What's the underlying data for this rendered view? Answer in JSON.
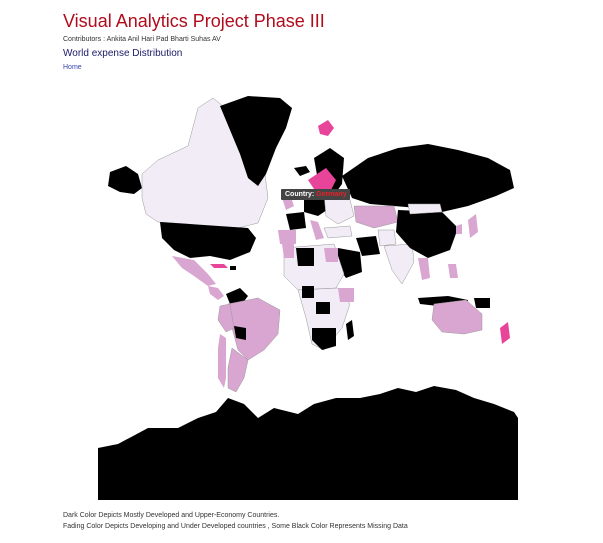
{
  "header": {
    "title": "Visual Analytics Project Phase III",
    "contributors": "Contributors : Ankita Anil Hari Pad Bharti Suhas AV",
    "subtitle": "World expense Distribution",
    "home_link": "Home"
  },
  "tooltip": {
    "label": "Country:",
    "value": "Germany"
  },
  "legend": {
    "line1": "Dark Color Depicts Mostly Developed and Upper-Economy Countries.",
    "line2": "Fading Color Depicts Developing and Under Developed countries , Some Black Color Represents Missing Data"
  },
  "colors": {
    "developed": "#000000",
    "emerging": "#d9a6d1",
    "developing": "#f1ecf5",
    "highlight": "#e8459a",
    "tooltip_bg": "#444444",
    "tooltip_value": "#e8202a",
    "title": "#b00c1c"
  }
}
